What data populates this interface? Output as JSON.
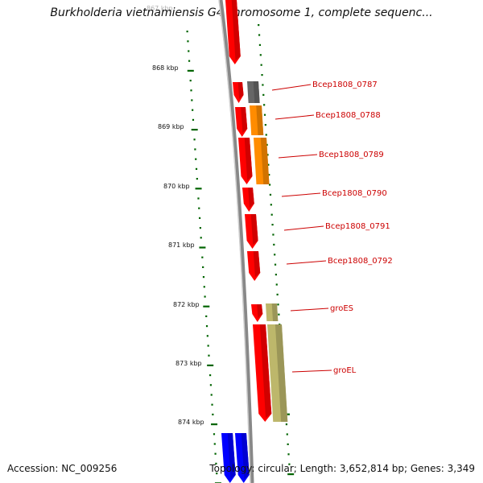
{
  "title": "Burkholderia vietnamiensis G4 chromosome 1, complete sequenc...",
  "footer": {
    "accession": "Accession: NC_009256",
    "summary": "Topology: circular; Length: 3,652,814 bp; Genes: 3,349"
  },
  "ticks": [
    "867 kbp",
    "868 kbp",
    "869 kbp",
    "870 kbp",
    "871 kbp",
    "872 kbp",
    "873 kbp",
    "874 kbp"
  ],
  "genes": [
    {
      "label": "",
      "color": "#ff0000"
    },
    {
      "label": "",
      "color": "#ff0000"
    },
    {
      "label": "",
      "color": "#ff0000"
    },
    {
      "label": "",
      "color": "#ff0000"
    },
    {
      "label": "",
      "color": "#ff0000"
    },
    {
      "label": "",
      "color": "#ff0000"
    },
    {
      "label": "",
      "color": "#ff0000"
    },
    {
      "label": "",
      "color": "#ff0000"
    },
    {
      "label": "",
      "color": "#ff0000"
    },
    {
      "label": "Bcep1808_0787",
      "color": "#666666"
    },
    {
      "label": "Bcep1808_0788",
      "color": "#ff8c00"
    },
    {
      "label": "Bcep1808_0789",
      "color": "#ff8c00"
    },
    {
      "label": "Bcep1808_0790",
      "color": "#ff0000"
    },
    {
      "label": "Bcep1808_0791",
      "color": "#ff0000"
    },
    {
      "label": "Bcep1808_0792",
      "color": "#ff0000"
    },
    {
      "label": "groES",
      "color": "#bdb76b"
    },
    {
      "label": "groEL",
      "color": "#bdb76b"
    },
    {
      "label": "",
      "color": "#0000ff"
    },
    {
      "label": "",
      "color": "#0000ff"
    }
  ],
  "colors": {
    "backbone": "#888888",
    "tick": "#006400",
    "label": "#cc0000"
  }
}
